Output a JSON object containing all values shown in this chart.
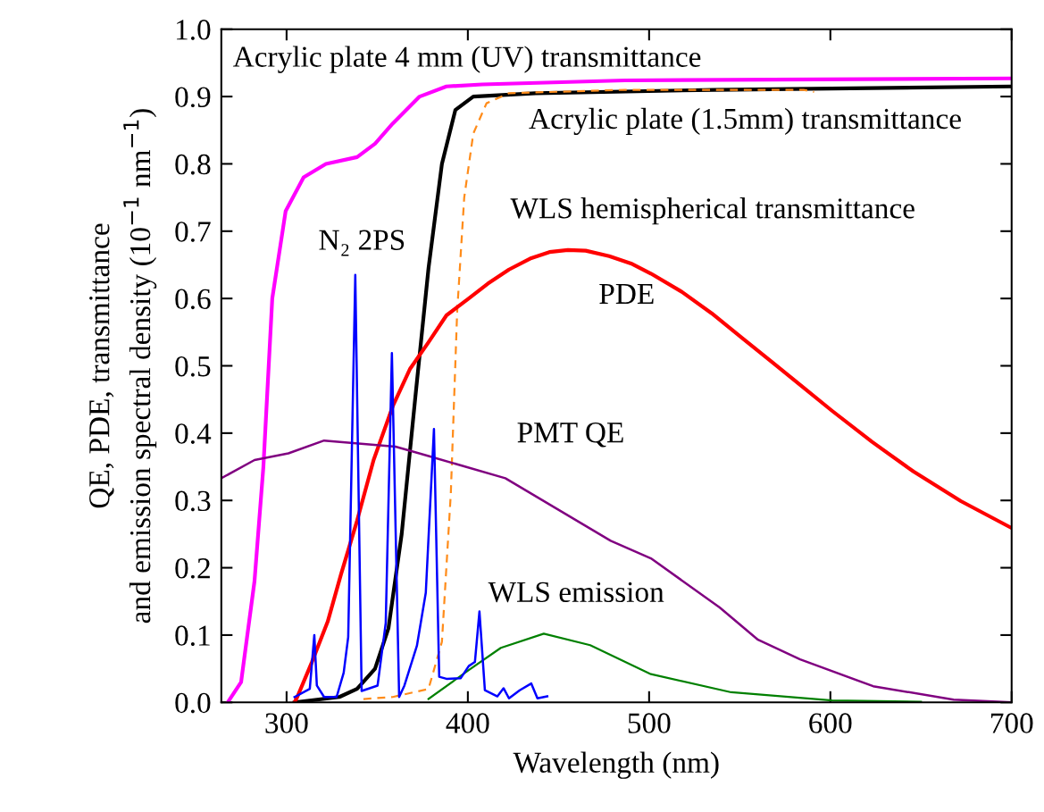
{
  "chart_data": {
    "type": "line",
    "xlabel": "Wavelength (nm)",
    "ylabel": "QE, PDE, transmittance\nand emission spectral density (10$^{−1}$ nm$^{−1}$)",
    "xlim": [
      264,
      700
    ],
    "xticks": [
      300,
      400,
      500,
      600,
      700
    ],
    "ylim": [
      0,
      1
    ],
    "yticks": [
      {
        "value": 0,
        "label": "0.0"
      },
      {
        "value": 0.1,
        "label": "0.1"
      },
      {
        "value": 0.2,
        "label": "0.2"
      },
      {
        "value": 0.3,
        "label": "0.3"
      },
      {
        "value": 0.4,
        "label": "0.4"
      },
      {
        "value": 0.5,
        "label": "0.5"
      },
      {
        "value": 0.6,
        "label": "0.6"
      },
      {
        "value": 0.7,
        "label": "0.7"
      },
      {
        "value": 0.8,
        "label": "0.8"
      },
      {
        "value": 0.9,
        "label": "0.9"
      },
      {
        "value": 1,
        "label": "1.0"
      }
    ],
    "grid": false,
    "series": [
      {
        "color": "#ff00ff",
        "x": [
          267.5,
          274.9,
          282.3,
          287.2,
          292.1,
          299.5,
          309.4,
          321.7,
          338.9,
          348.8,
          358.6,
          373.4,
          388.2,
          407.9,
          486.7,
          700
        ],
        "values": [
          0.0,
          0.03,
          0.18,
          0.35,
          0.6,
          0.73,
          0.78,
          0.8,
          0.81,
          0.83,
          0.86,
          0.9,
          0.915,
          0.918,
          0.924,
          0.927
        ]
      },
      {
        "color": "#000000",
        "x": [
          304.4,
          329.1,
          338.9,
          348.8,
          356.2,
          363.5,
          370.9,
          378.3,
          385.7,
          393.1,
          403,
          437.4,
          536,
          700
        ],
        "values": [
          0.0,
          0.008,
          0.02,
          0.05,
          0.11,
          0.25,
          0.45,
          0.645,
          0.8,
          0.88,
          0.9,
          0.905,
          0.91,
          0.915
        ]
      },
      {
        "color": "#ff8c1a",
        "line_style": "dashed",
        "x": [
          342.4,
          358.6,
          378.3,
          385.7,
          390.6,
          394.1,
          398,
          403,
          410.3,
          422.7,
          486.7,
          585.2,
          591
        ],
        "values": [
          0.005,
          0.008,
          0.02,
          0.09,
          0.31,
          0.58,
          0.75,
          0.845,
          0.89,
          0.905,
          0.91,
          0.91,
          0.907
        ]
      },
      {
        "color": "#ff0000",
        "x": [
          304.4,
          305.9,
          314,
          322.7,
          330,
          338.9,
          348,
          358.6,
          368,
          378.3,
          388.2,
          400.5,
          411,
          422.7,
          435,
          445,
          455.2,
          465,
          478,
          490,
          501,
          518,
          534.5,
          551,
          568,
          585,
          601,
          623,
          645.8,
          672,
          700
        ],
        "values": [
          0.0,
          0.008,
          0.06,
          0.12,
          0.19,
          0.27,
          0.36,
          0.44,
          0.495,
          0.535,
          0.575,
          0.6,
          0.622,
          0.643,
          0.66,
          0.669,
          0.672,
          0.671,
          0.663,
          0.652,
          0.637,
          0.61,
          0.578,
          0.542,
          0.505,
          0.468,
          0.433,
          0.387,
          0.343,
          0.299,
          0.259
        ]
      },
      {
        "color": "#800080",
        "x": [
          264,
          282.3,
          301,
          320.7,
          360.1,
          378.3,
          420.7,
          478.8,
          501,
          538.9,
          560.1,
          583.3,
          623.6,
          668,
          700
        ],
        "values": [
          0.333,
          0.36,
          0.37,
          0.389,
          0.38,
          0.366,
          0.333,
          0.24,
          0.214,
          0.141,
          0.093,
          0.064,
          0.024,
          0.004,
          0.0
        ]
      },
      {
        "color": "#008000",
        "x": [
          378.3,
          400.5,
          418.2,
          441.9,
          467.5,
          501,
          545.3,
          601,
          650
        ],
        "values": [
          0.005,
          0.048,
          0.081,
          0.102,
          0.085,
          0.042,
          0.015,
          0.003,
          0.001
        ]
      },
      {
        "color": "#0000ff",
        "x": [
          304.4,
          312.8,
          315.3,
          316.7,
          320.7,
          327.6,
          331.5,
          334,
          337.9,
          341.4,
          350.2,
          354.7,
          358.1,
          362.1,
          365,
          371.9,
          376.8,
          381.3,
          384.2,
          388.2,
          396.1,
          400.5,
          403.9,
          406.4,
          409.4,
          416.3,
          419.7,
          422.7,
          428.6,
          435,
          438.4,
          443.8
        ],
        "values": [
          0.008,
          0.02,
          0.1,
          0.025,
          0.008,
          0.008,
          0.044,
          0.097,
          0.635,
          0.017,
          0.025,
          0.118,
          0.519,
          0.008,
          0.025,
          0.084,
          0.163,
          0.406,
          0.038,
          0.035,
          0.036,
          0.054,
          0.06,
          0.135,
          0.018,
          0.009,
          0.021,
          0.006,
          0.018,
          0.028,
          0.006,
          0.009
        ]
      }
    ],
    "annotations": [
      "Acrylic plate 4 mm (UV) transmittance",
      "Acrylic plate (1.5mm) transmittance",
      "WLS hemispherical transmittance",
      "N₂ 2PS",
      "PDE",
      "PMT QE",
      "WLS emission"
    ]
  }
}
